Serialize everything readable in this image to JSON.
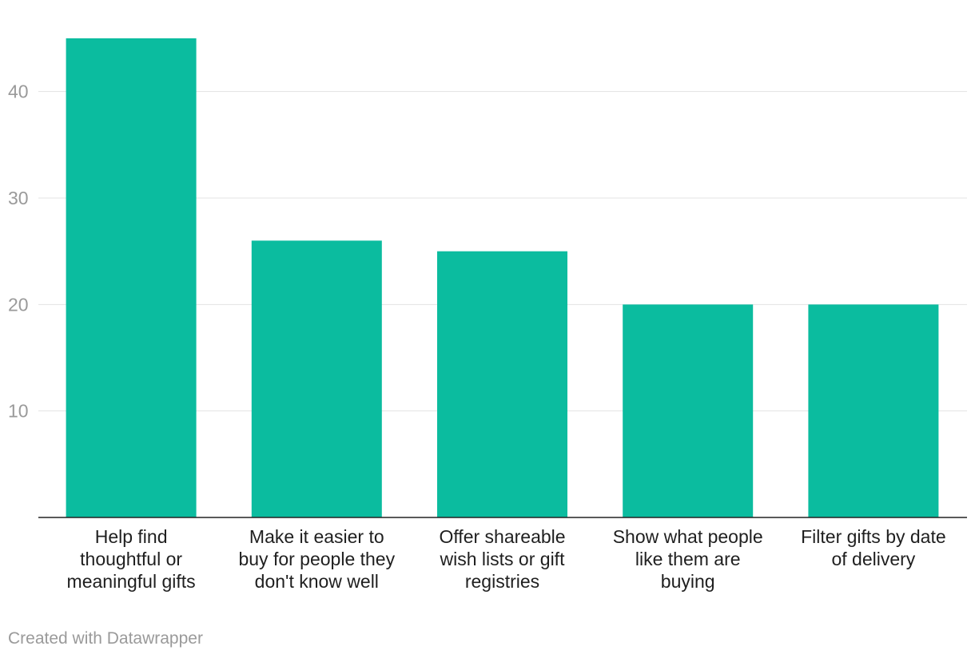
{
  "chart_data": {
    "type": "bar",
    "title": "",
    "xlabel": "",
    "ylabel": "",
    "categories": [
      [
        "Help find",
        "thoughtful or",
        "meaningful gifts"
      ],
      [
        "Make it easier to",
        "buy for people they",
        "don't know well"
      ],
      [
        "Offer shareable",
        "wish lists or gift",
        "registries"
      ],
      [
        "Show what people",
        "like them are",
        "buying"
      ],
      [
        "Filter gifts by date",
        "of delivery"
      ]
    ],
    "values": [
      45,
      26,
      25,
      20,
      20
    ],
    "ylim": [
      0,
      45
    ],
    "yticks": [
      10,
      20,
      30,
      40
    ],
    "grid": true,
    "bar_color": "#0bbc9f"
  },
  "credit": "Created with Datawrapper"
}
